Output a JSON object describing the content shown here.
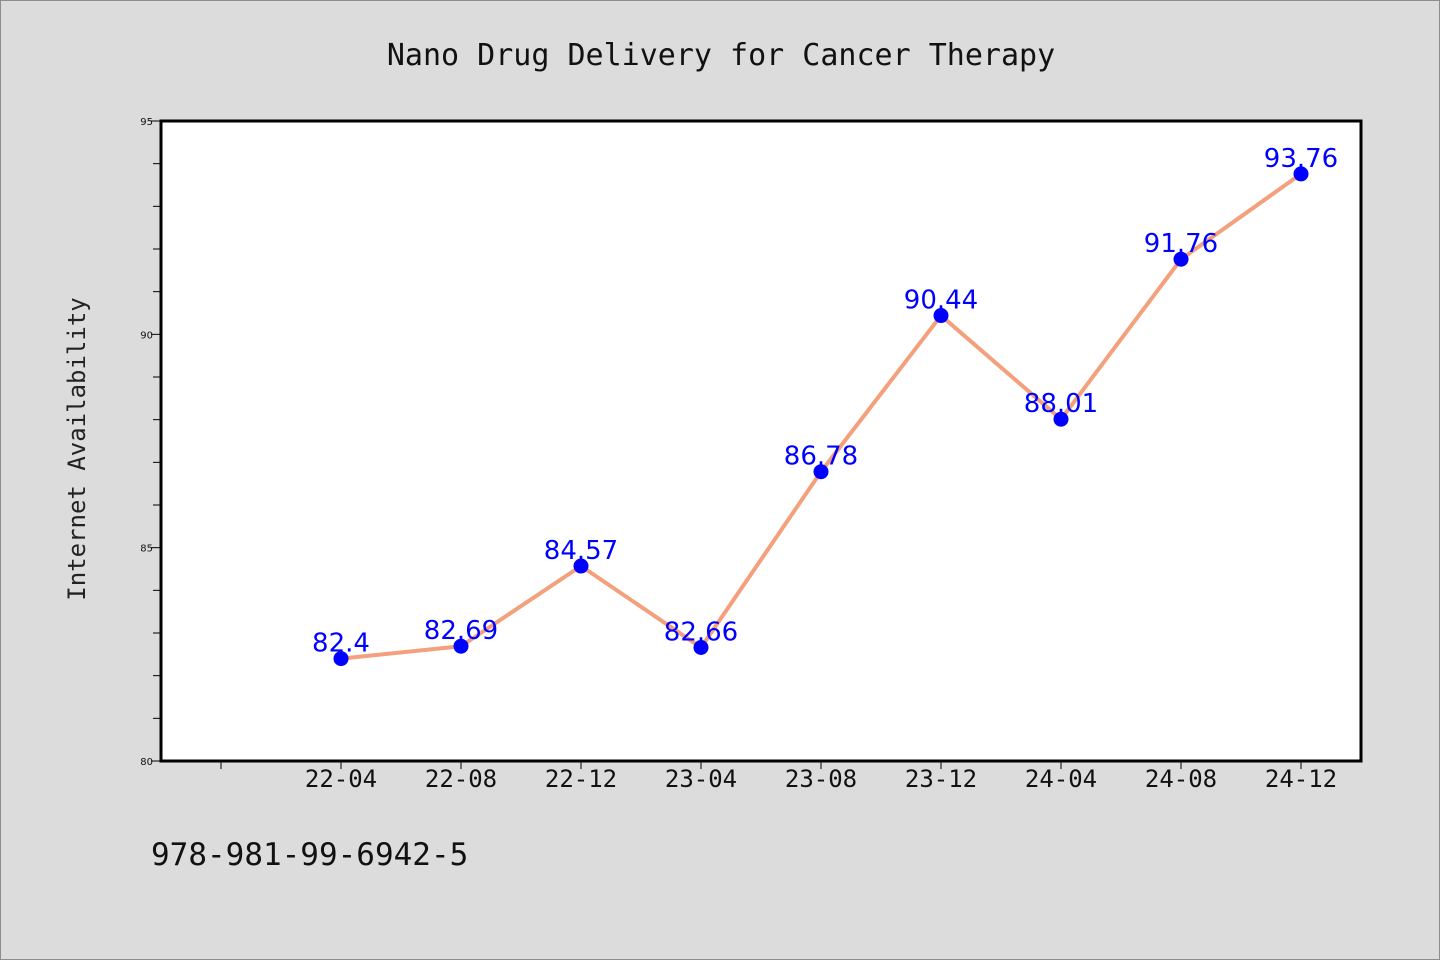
{
  "chart_data": {
    "type": "line",
    "title": "Nano Drug Delivery for Cancer Therapy",
    "xlabel": "",
    "ylabel": "Internet Availability",
    "categories": [
      "22-04",
      "22-08",
      "22-12",
      "23-04",
      "23-08",
      "23-12",
      "24-04",
      "24-08",
      "24-12"
    ],
    "series": [
      {
        "values": [
          82.4,
          82.69,
          84.57,
          82.66,
          86.78,
          90.44,
          88.01,
          91.76,
          93.76
        ],
        "labels": [
          "82.4",
          "82.69",
          "84.57",
          "82.66",
          "86.78",
          "90.44",
          "88.01",
          "91.76",
          "93.76"
        ],
        "line_color": "#f4a07c",
        "marker_color": "#0000ff"
      }
    ],
    "ylim": [
      80,
      95
    ],
    "yticks": [
      "80",
      "85",
      "90",
      "95"
    ],
    "grid": false,
    "legend": "none",
    "label_color": "#0000ff",
    "background": "#dcdcdc",
    "plot_background": "#ffffff"
  },
  "footer": {
    "isbn": "978-981-99-6942-5"
  }
}
